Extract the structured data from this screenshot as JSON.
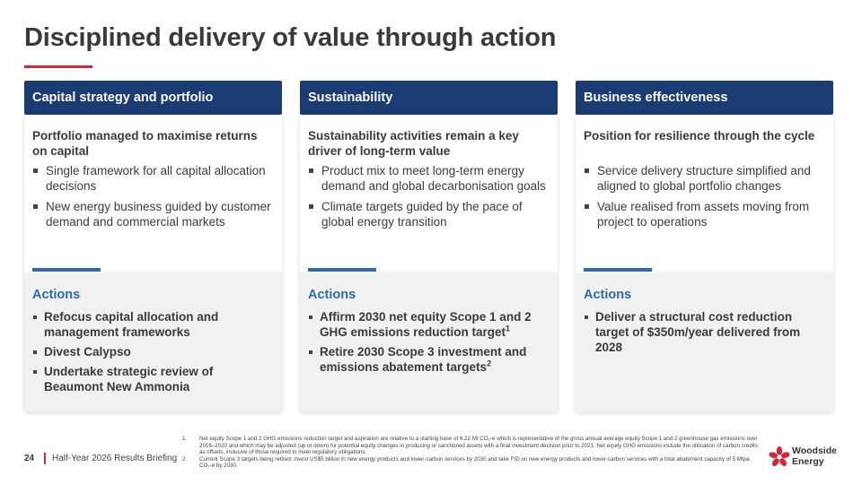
{
  "slide": {
    "title": "Disciplined delivery of value through action"
  },
  "columns": [
    {
      "header": "Capital strategy and portfolio",
      "lead": "Portfolio managed to maximise returns on capital",
      "bullets": [
        "Single framework for all capital allocation decisions",
        "New energy business guided by customer demand and commercial markets"
      ],
      "actions_title": "Actions",
      "actions": [
        {
          "text": "Refocus capital allocation and management frameworks",
          "sup": ""
        },
        {
          "text": "Divest Calypso",
          "sup": ""
        },
        {
          "text": "Undertake strategic review of Beaumont New Ammonia",
          "sup": ""
        }
      ]
    },
    {
      "header": "Sustainability",
      "lead": "Sustainability activities remain a key driver of long-term value",
      "bullets": [
        "Product mix to meet long-term energy demand and global decarbonisation goals",
        "Climate targets guided by the pace of global energy transition"
      ],
      "actions_title": "Actions",
      "actions": [
        {
          "text": "Affirm 2030 net equity Scope 1 and 2 GHG emissions reduction target",
          "sup": "1"
        },
        {
          "text": "Retire 2030 Scope 3 investment and emissions abatement targets",
          "sup": "2"
        }
      ]
    },
    {
      "header": "Business effectiveness",
      "lead": "Position for resilience through the cycle",
      "bullets": [
        "Service delivery structure simplified and aligned to global portfolio changes",
        "Value realised from assets moving from project to operations"
      ],
      "actions_title": "Actions",
      "actions": [
        {
          "text": "Deliver a structural cost reduction target of $350m/year delivered from 2028",
          "sup": ""
        }
      ]
    }
  ],
  "footer": {
    "page_number": "24",
    "briefing": "Half-Year 2026 Results Briefing",
    "footnotes": [
      {
        "num": "1.",
        "text": "Net equity Scope 1 and 2 GHG emissions reduction target and aspiration are relative to a starting base of 6.22 Mt CO₂-e which is representative of the gross annual average equity Scope 1 and 2 greenhouse gas emissions over 2016–2020 and which may be adjusted (up or down) for potential equity changes in producing or sanctioned assets with a final investment decision prior to 2021. Net equity GHG emissions include the utilisation of carbon credits as offsets, inclusive of those required to meet regulatory obligations."
      },
      {
        "num": "2.",
        "text": "Current Scope 3 targets being retired: invest US$5 billion in new energy products and lower-carbon services by 2030 and take FID on new energy products and lower-carbon services with a total abatement capacity of 5 Mtpa CO₂-e by 2030."
      }
    ],
    "logo_line1": "Woodside",
    "logo_line2": "Energy"
  },
  "colors": {
    "header_bg": "#1b3b73",
    "accent_blue": "#2e6ab3",
    "accent_red": "#d62638",
    "actions_bg": "#f1f1f1"
  },
  "icons": {
    "logo": "woodside-flower-icon"
  }
}
